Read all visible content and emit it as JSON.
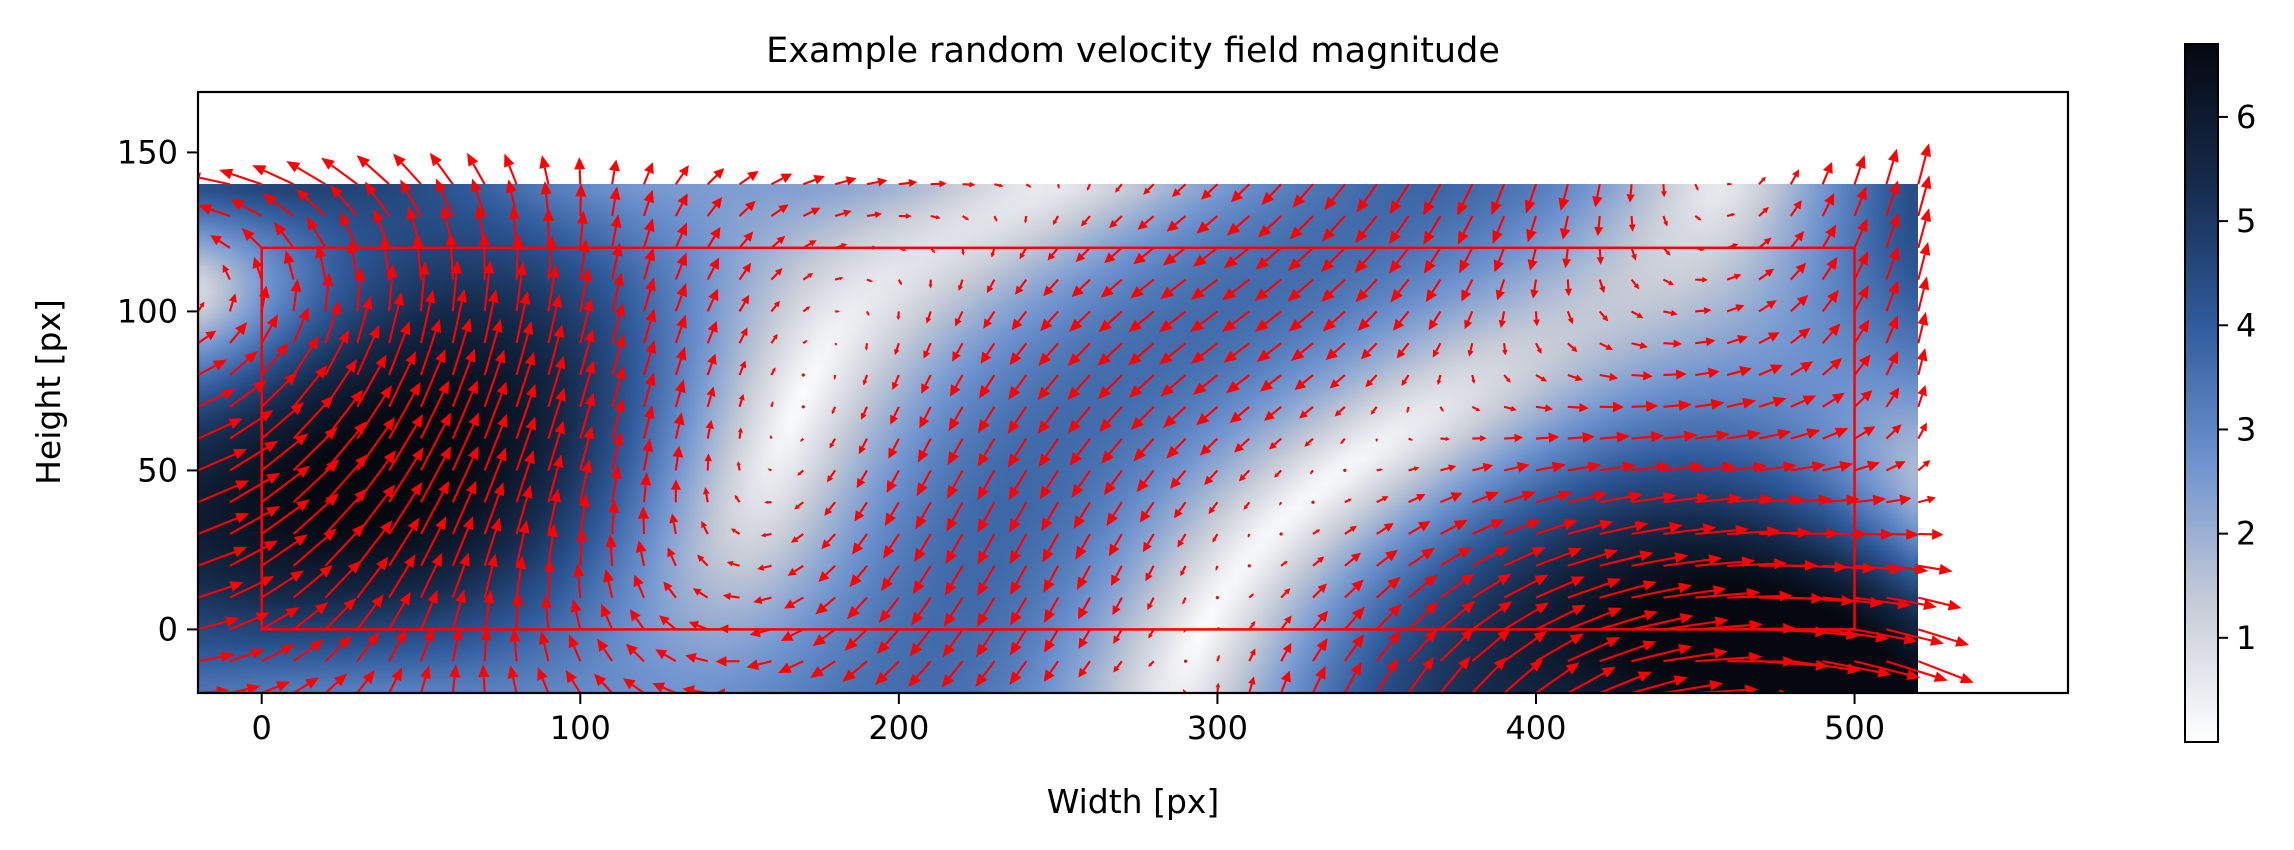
{
  "chart_data": {
    "type": "heatmap",
    "title": "Example random velocity field magnitude",
    "xlabel": "Width [px]",
    "ylabel": "Height [px]",
    "xlim": [
      -20,
      567
    ],
    "ylim": [
      -20,
      169
    ],
    "xticks": [
      0,
      100,
      200,
      300,
      400,
      500
    ],
    "yticks": [
      0,
      50,
      100,
      150
    ],
    "field_extent": {
      "x": [
        -20,
        520
      ],
      "y": [
        -20,
        140
      ]
    },
    "colormap": {
      "name": "white-to-blue-to-black",
      "stops": [
        "#ffffff",
        "#c6cbd6",
        "#6e93cf",
        "#2f5b9c",
        "#152b4c",
        "#05080f"
      ]
    },
    "colorbar": {
      "min": 0,
      "max": 6.7,
      "ticks": [
        1,
        2,
        3,
        4,
        5,
        6
      ]
    },
    "roi_rectangle": {
      "x0": 0,
      "y0": 0,
      "x1": 500,
      "y1": 120,
      "color": "#ff0000"
    },
    "quiver": {
      "color": "#ff0000",
      "x_spacing": 10,
      "y_spacing": 10
    },
    "grid": false,
    "legend": "none"
  }
}
